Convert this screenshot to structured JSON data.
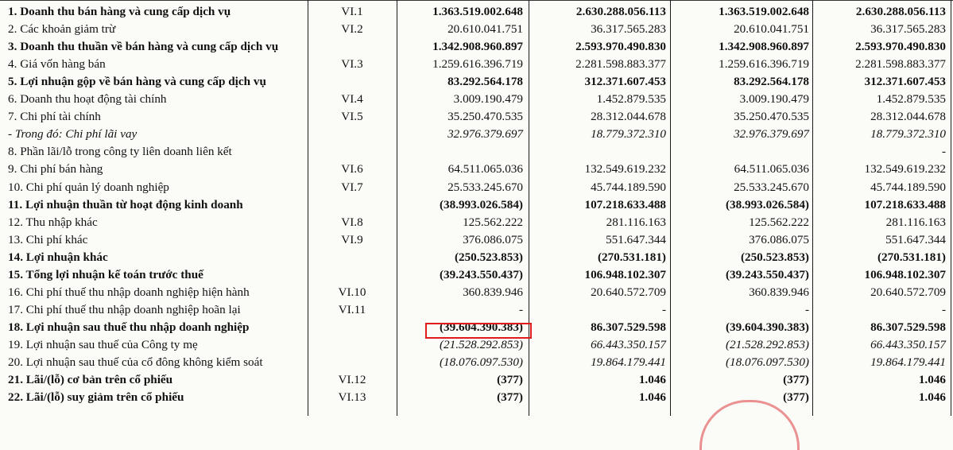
{
  "rows": [
    {
      "label": "1. Doanh thu bán hàng và cung cấp dịch vụ",
      "note": "VI.1",
      "v1": "1.363.519.002.648",
      "v2": "2.630.288.056.113",
      "v3": "1.363.519.002.648",
      "v4": "2.630.288.056.113",
      "style": "bold"
    },
    {
      "label": "2. Các khoản giảm trừ",
      "note": "VI.2",
      "v1": "20.610.041.751",
      "v2": "36.317.565.283",
      "v3": "20.610.041.751",
      "v4": "36.317.565.283",
      "style": "normal"
    },
    {
      "label": "3. Doanh thu thuần về bán hàng và cung cấp dịch vụ",
      "note": "",
      "v1": "1.342.908.960.897",
      "v2": "2.593.970.490.830",
      "v3": "1.342.908.960.897",
      "v4": "2.593.970.490.830",
      "style": "bold"
    },
    {
      "label": "4. Giá vốn hàng bán",
      "note": "VI.3",
      "v1": "1.259.616.396.719",
      "v2": "2.281.598.883.377",
      "v3": "1.259.616.396.719",
      "v4": "2.281.598.883.377",
      "style": "normal"
    },
    {
      "label": "5. Lợi nhuận gộp về bán hàng và cung cấp dịch vụ",
      "note": "",
      "v1": "83.292.564.178",
      "v2": "312.371.607.453",
      "v3": "83.292.564.178",
      "v4": "312.371.607.453",
      "style": "bold"
    },
    {
      "label": "6. Doanh thu hoạt động tài chính",
      "note": "VI.4",
      "v1": "3.009.190.479",
      "v2": "1.452.879.535",
      "v3": "3.009.190.479",
      "v4": "1.452.879.535",
      "style": "normal"
    },
    {
      "label": "7. Chi phí tài chính",
      "note": "VI.5",
      "v1": "35.250.470.535",
      "v2": "28.312.044.678",
      "v3": "35.250.470.535",
      "v4": "28.312.044.678",
      "style": "normal"
    },
    {
      "label": "    - Trong đó: Chi phí lãi vay",
      "note": "",
      "v1": "32.976.379.697",
      "v2": "18.779.372.310",
      "v3": "32.976.379.697",
      "v4": "18.779.372.310",
      "style": "italic-all"
    },
    {
      "label": "8. Phần lãi/lỗ trong công ty liên doanh liên kết",
      "note": "",
      "v1": "",
      "v2": "",
      "v3": "",
      "v4": "-",
      "style": "normal"
    },
    {
      "label": "9. Chi phí bán hàng",
      "note": "VI.6",
      "v1": "64.511.065.036",
      "v2": "132.549.619.232",
      "v3": "64.511.065.036",
      "v4": "132.549.619.232",
      "style": "normal"
    },
    {
      "label": "10. Chi phí quản lý doanh nghiệp",
      "note": "VI.7",
      "v1": "25.533.245.670",
      "v2": "45.744.189.590",
      "v3": "25.533.245.670",
      "v4": "45.744.189.590",
      "style": "normal"
    },
    {
      "label": "11. Lợi nhuận thuần từ hoạt động kinh doanh",
      "note": "",
      "v1": "(38.993.026.584)",
      "v2": "107.218.633.488",
      "v3": "(38.993.026.584)",
      "v4": "107.218.633.488",
      "style": "bold"
    },
    {
      "label": "12. Thu nhập khác",
      "note": "VI.8",
      "v1": "125.562.222",
      "v2": "281.116.163",
      "v3": "125.562.222",
      "v4": "281.116.163",
      "style": "normal"
    },
    {
      "label": "13. Chi phí khác",
      "note": "VI.9",
      "v1": "376.086.075",
      "v2": "551.647.344",
      "v3": "376.086.075",
      "v4": "551.647.344",
      "style": "normal"
    },
    {
      "label": "14. Lợi nhuận khác",
      "note": "",
      "v1": "(250.523.853)",
      "v2": "(270.531.181)",
      "v3": "(250.523.853)",
      "v4": "(270.531.181)",
      "style": "bold"
    },
    {
      "label": "15. Tổng lợi nhuận kế toán trước thuế",
      "note": "",
      "v1": "(39.243.550.437)",
      "v2": "106.948.102.307",
      "v3": "(39.243.550.437)",
      "v4": "106.948.102.307",
      "style": "bold"
    },
    {
      "label": "16. Chi phí thuế thu nhập doanh nghiệp hiện hành",
      "note": "VI.10",
      "v1": "360.839.946",
      "v2": "20.640.572.709",
      "v3": "360.839.946",
      "v4": "20.640.572.709",
      "style": "normal"
    },
    {
      "label": "17. Chi phí thuế thu nhập doanh nghiệp hoãn lại",
      "note": "VI.11",
      "v1": "-",
      "v2": "-",
      "v3": "-",
      "v4": "-",
      "style": "normal"
    },
    {
      "label": "18. Lợi nhuận sau thuế thu nhập doanh nghiệp",
      "note": "",
      "v1": "(39.604.390.383)",
      "v2": "86.307.529.598",
      "v3": "(39.604.390.383)",
      "v4": "86.307.529.598",
      "style": "bold"
    },
    {
      "label": "19. Lợi nhuận sau thuế của Công ty mẹ",
      "note": "",
      "v1": "(21.528.292.853)",
      "v2": "66.443.350.157",
      "v3": "(21.528.292.853)",
      "v4": "66.443.350.157",
      "style": "italic-values"
    },
    {
      "label": "20. Lợi nhuận sau thuế của cổ đông không kiểm soát",
      "note": "",
      "v1": "(18.076.097.530)",
      "v2": "19.864.179.441",
      "v3": "(18.076.097.530)",
      "v4": "19.864.179.441",
      "style": "italic-values"
    },
    {
      "label": "21. Lãi/(lỗ) cơ bản trên cổ phiếu",
      "note": "VI.12",
      "v1": "(377)",
      "v2": "1.046",
      "v3": "(377)",
      "v4": "1.046",
      "style": "bold"
    },
    {
      "label": "22. Lãi/(lỗ) suy giảm trên cổ phiếu",
      "note": "VI.13",
      "v1": "(377)",
      "v2": "1.046",
      "v3": "(377)",
      "v4": "1.046",
      "style": "bold"
    }
  ],
  "highlight": {
    "color": "#e01b1b"
  }
}
